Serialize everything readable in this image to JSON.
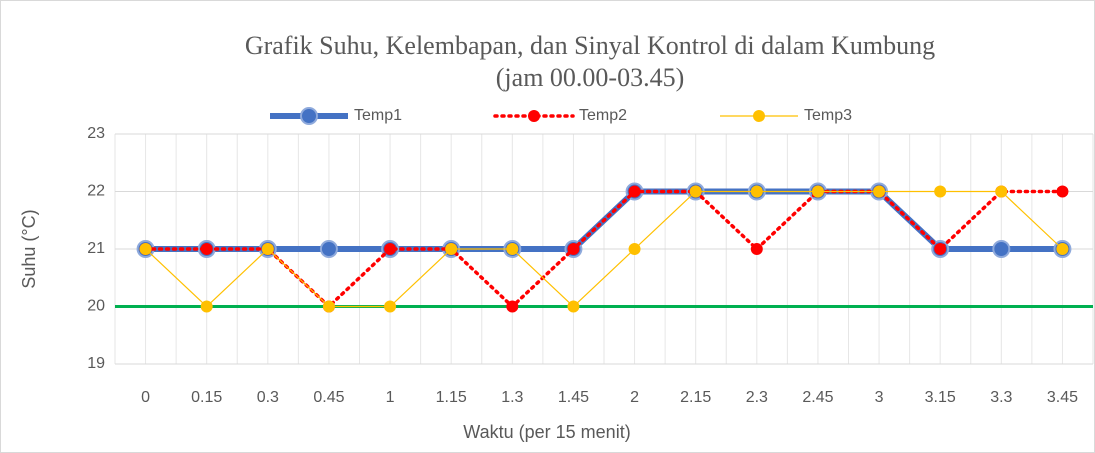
{
  "chart_data": {
    "type": "line",
    "title": [
      "Grafik Suhu, Kelembapan, dan Sinyal Kontrol di dalam Kumbung",
      "(jam 00.00-03.45)"
    ],
    "x_label": "Waktu (per 15 menit)",
    "y_label": "Suhu (°C)",
    "categories": [
      "0",
      "0.15",
      "0.3",
      "0.45",
      "1",
      "1.15",
      "1.3",
      "1.45",
      "2",
      "2.15",
      "2.3",
      "2.45",
      "3",
      "3.15",
      "3.3",
      "3.45"
    ],
    "series": [
      {
        "name": "Temp1",
        "color": "#4472c4",
        "values": [
          21,
          21,
          21,
          21,
          21,
          21,
          21,
          21,
          22,
          22,
          22,
          22,
          22,
          21,
          21,
          21
        ]
      },
      {
        "name": "Temp2",
        "color": "#ff0000",
        "values": [
          21,
          21,
          21,
          20,
          21,
          21,
          20,
          21,
          22,
          22,
          21,
          22,
          22,
          21,
          22,
          22
        ]
      },
      {
        "name": "Temp3",
        "color": "#ffc000",
        "values": [
          21,
          20,
          21,
          20,
          20,
          21,
          21,
          20,
          21,
          22,
          22,
          22,
          22,
          22,
          22,
          21
        ]
      }
    ],
    "reference_line": {
      "value": 20,
      "color": "#00b050"
    },
    "ylim": [
      19,
      23
    ],
    "yticks": [
      19,
      20,
      21,
      22,
      23
    ],
    "grid": true,
    "legend": "top"
  }
}
